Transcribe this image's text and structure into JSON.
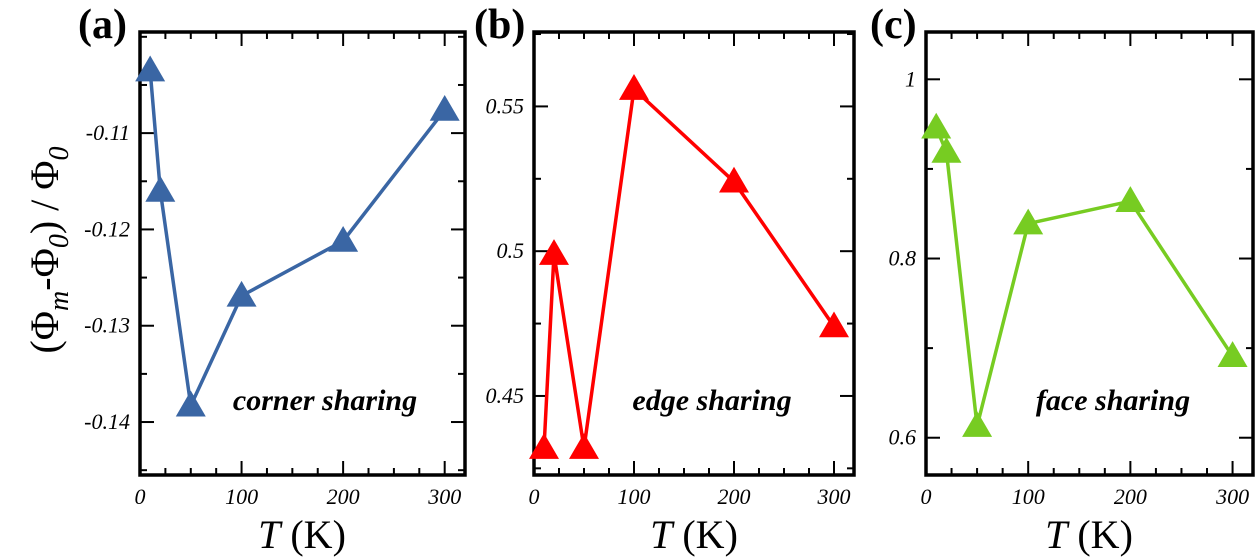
{
  "ylabel": {
    "open": "(",
    "phi1": "Φ",
    "sub_m": "m",
    "minus": "-",
    "phi2": "Φ",
    "sub_0a": "0",
    "close": ") / ",
    "phi3": "Φ",
    "sub_0b": "0"
  },
  "chart_data": [
    {
      "type": "line",
      "panel_label": "(a)",
      "annotation": "corner sharing",
      "color": "#3a66a4",
      "marker": "triangle",
      "xlabel": "T (K)",
      "xlim": [
        0,
        320
      ],
      "ylim": [
        -0.1455,
        -0.0995
      ],
      "x_ticks": [
        0,
        100,
        200,
        300
      ],
      "x_tick_labels": [
        "0",
        "100",
        "200",
        "300"
      ],
      "y_ticks": [
        -0.14,
        -0.13,
        -0.12,
        -0.11
      ],
      "y_tick_labels": [
        "-0.14",
        "-0.13",
        "-0.12",
        "-0.11"
      ],
      "x_minor_step": 50,
      "y_minor_step": 0.005,
      "series": [
        {
          "x": [
            10,
            20,
            50,
            100,
            200,
            300
          ],
          "values": [
            -0.1035,
            -0.116,
            -0.1383,
            -0.1269,
            -0.1212,
            -0.1076
          ]
        }
      ]
    },
    {
      "type": "line",
      "panel_label": "(b)",
      "annotation": "edge sharing",
      "color": "#ff0000",
      "marker": "triangle",
      "xlabel": "T (K)",
      "xlim": [
        0,
        320
      ],
      "ylim": [
        0.4227,
        0.5757
      ],
      "x_ticks": [
        0,
        100,
        200,
        300
      ],
      "x_tick_labels": [
        "0",
        "100",
        "200",
        "300"
      ],
      "y_ticks": [
        0.45,
        0.5,
        0.55
      ],
      "y_tick_labels": [
        "0.45",
        "0.5",
        "0.55"
      ],
      "x_minor_step": 50,
      "y_minor_step": 0.025,
      "series": [
        {
          "x": [
            10,
            20,
            50,
            100,
            200,
            300
          ],
          "values": [
            0.432,
            0.499,
            0.432,
            0.556,
            0.524,
            0.474
          ]
        }
      ]
    },
    {
      "type": "line",
      "panel_label": "(c)",
      "annotation": "face sharing",
      "color": "#77cc22",
      "marker": "triangle",
      "xlabel": "T (K)",
      "xlim": [
        0,
        320
      ],
      "ylim": [
        0.5584,
        1.0528
      ],
      "x_ticks": [
        0,
        100,
        200,
        300
      ],
      "x_tick_labels": [
        "0",
        "100",
        "200",
        "300"
      ],
      "y_ticks": [
        0.6,
        0.8,
        1.0
      ],
      "y_tick_labels": [
        "0.6",
        "0.8",
        "1"
      ],
      "x_minor_step": 50,
      "y_minor_step": 0.1,
      "series": [
        {
          "x": [
            10,
            20,
            50,
            100,
            200,
            300
          ],
          "values": [
            0.946,
            0.919,
            0.613,
            0.839,
            0.864,
            0.691
          ]
        }
      ]
    }
  ]
}
